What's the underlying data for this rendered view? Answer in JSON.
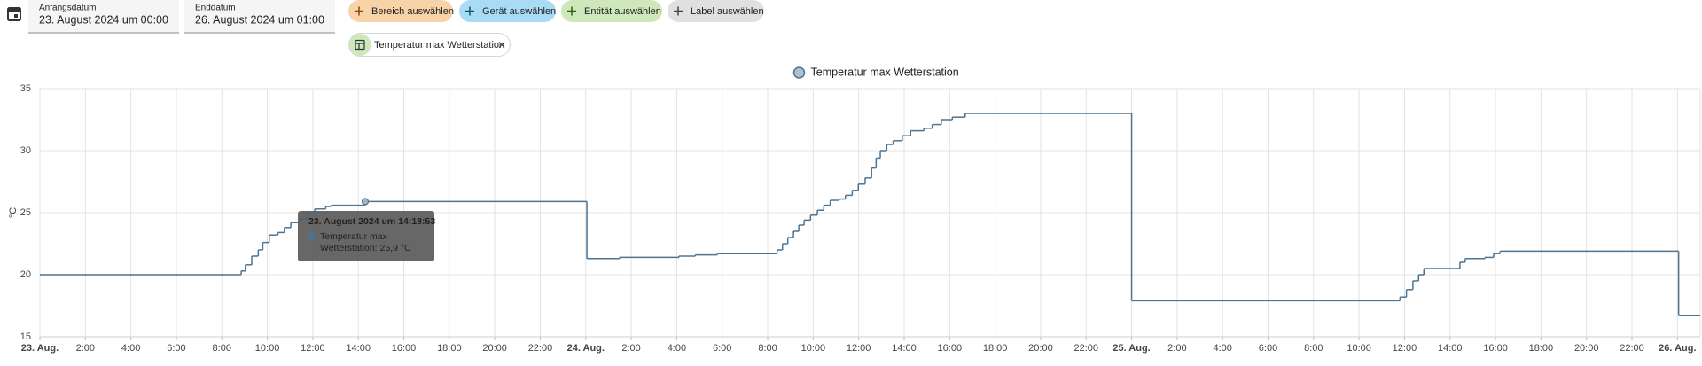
{
  "controls": {
    "start_label": "Anfangsdatum",
    "start_value": "23. August 2024 um 00:00",
    "end_label": "Enddatum",
    "end_value": "26. August 2024 um 01:00",
    "chips": [
      "Bereich auswählen",
      "Gerät auswählen",
      "Entität auswählen",
      "Label auswählen"
    ],
    "selected": "Temperatur max Wetterstation"
  },
  "chart_data": {
    "type": "line",
    "step": true,
    "ylabel": "°C",
    "grid": true,
    "xlim": [
      "2024-08-23T00:00",
      "2024-08-26T01:00"
    ],
    "ylim": [
      15,
      35
    ],
    "yticks": [
      15,
      20,
      25,
      30,
      35
    ],
    "xticks": [
      {
        "value": "2024-08-23T00:00",
        "label": "23. Aug."
      },
      {
        "value": "2024-08-23T02:00",
        "label": "2:00"
      },
      {
        "value": "2024-08-23T04:00",
        "label": "4:00"
      },
      {
        "value": "2024-08-23T06:00",
        "label": "6:00"
      },
      {
        "value": "2024-08-23T08:00",
        "label": "8:00"
      },
      {
        "value": "2024-08-23T10:00",
        "label": "10:00"
      },
      {
        "value": "2024-08-23T12:00",
        "label": "12:00"
      },
      {
        "value": "2024-08-23T14:00",
        "label": "14:00"
      },
      {
        "value": "2024-08-23T16:00",
        "label": "16:00"
      },
      {
        "value": "2024-08-23T18:00",
        "label": "18:00"
      },
      {
        "value": "2024-08-23T20:00",
        "label": "20:00"
      },
      {
        "value": "2024-08-23T22:00",
        "label": "22:00"
      },
      {
        "value": "2024-08-24T00:00",
        "label": "24. Aug."
      },
      {
        "value": "2024-08-24T02:00",
        "label": "2:00"
      },
      {
        "value": "2024-08-24T04:00",
        "label": "4:00"
      },
      {
        "value": "2024-08-24T06:00",
        "label": "6:00"
      },
      {
        "value": "2024-08-24T08:00",
        "label": "8:00"
      },
      {
        "value": "2024-08-24T10:00",
        "label": "10:00"
      },
      {
        "value": "2024-08-24T12:00",
        "label": "12:00"
      },
      {
        "value": "2024-08-24T14:00",
        "label": "14:00"
      },
      {
        "value": "2024-08-24T16:00",
        "label": "16:00"
      },
      {
        "value": "2024-08-24T18:00",
        "label": "18:00"
      },
      {
        "value": "2024-08-24T20:00",
        "label": "20:00"
      },
      {
        "value": "2024-08-24T22:00",
        "label": "22:00"
      },
      {
        "value": "2024-08-25T00:00",
        "label": "25. Aug."
      },
      {
        "value": "2024-08-25T02:00",
        "label": "2:00"
      },
      {
        "value": "2024-08-25T04:00",
        "label": "4:00"
      },
      {
        "value": "2024-08-25T06:00",
        "label": "6:00"
      },
      {
        "value": "2024-08-25T08:00",
        "label": "8:00"
      },
      {
        "value": "2024-08-25T10:00",
        "label": "10:00"
      },
      {
        "value": "2024-08-25T12:00",
        "label": "12:00"
      },
      {
        "value": "2024-08-25T14:00",
        "label": "14:00"
      },
      {
        "value": "2024-08-25T16:00",
        "label": "16:00"
      },
      {
        "value": "2024-08-25T18:00",
        "label": "18:00"
      },
      {
        "value": "2024-08-25T20:00",
        "label": "20:00"
      },
      {
        "value": "2024-08-25T22:00",
        "label": "22:00"
      },
      {
        "value": "2024-08-26T00:00",
        "label": "26. Aug."
      }
    ],
    "x": [
      "2024-08-23T00:00",
      "2024-08-23T08:51",
      "2024-08-23T09:02",
      "2024-08-23T09:19",
      "2024-08-23T09:36",
      "2024-08-23T09:48",
      "2024-08-23T10:05",
      "2024-08-23T10:28",
      "2024-08-23T10:45",
      "2024-08-23T11:02",
      "2024-08-23T11:25",
      "2024-08-23T11:45",
      "2024-08-23T12:05",
      "2024-08-23T12:34",
      "2024-08-23T12:48",
      "2024-08-23T14:18",
      "2024-08-24T00:03",
      "2024-08-24T01:29",
      "2024-08-24T04:06",
      "2024-08-24T04:49",
      "2024-08-24T05:47",
      "2024-08-24T08:25",
      "2024-08-24T08:39",
      "2024-08-24T08:53",
      "2024-08-24T09:08",
      "2024-08-24T09:22",
      "2024-08-24T09:36",
      "2024-08-24T09:53",
      "2024-08-24T10:11",
      "2024-08-24T10:28",
      "2024-08-24T10:45",
      "2024-08-24T11:08",
      "2024-08-24T11:25",
      "2024-08-24T11:43",
      "2024-08-24T11:59",
      "2024-08-24T12:17",
      "2024-08-24T12:34",
      "2024-08-24T12:46",
      "2024-08-24T12:57",
      "2024-08-24T13:14",
      "2024-08-24T13:31",
      "2024-08-24T13:55",
      "2024-08-24T14:17",
      "2024-08-24T14:52",
      "2024-08-24T15:14",
      "2024-08-24T15:38",
      "2024-08-24T16:07",
      "2024-08-24T16:41",
      "2024-08-25T00:00",
      "2024-08-25T11:48",
      "2024-08-25T12:05",
      "2024-08-25T12:22",
      "2024-08-25T12:37",
      "2024-08-25T12:51",
      "2024-08-25T14:26",
      "2024-08-25T14:40",
      "2024-08-25T15:32",
      "2024-08-25T15:55",
      "2024-08-25T16:12",
      "2024-08-26T00:03"
    ],
    "series": [
      {
        "name": "Temperatur max Wetterstation",
        "color": "#4e7391",
        "values": [
          20.0,
          20.3,
          20.8,
          21.5,
          22.0,
          22.6,
          23.2,
          23.4,
          23.8,
          24.2,
          24.5,
          25.0,
          25.3,
          25.5,
          25.6,
          25.9,
          21.3,
          21.4,
          21.5,
          21.6,
          21.7,
          22.0,
          22.5,
          23.0,
          23.5,
          24.0,
          24.4,
          24.8,
          25.2,
          25.6,
          26.0,
          26.1,
          26.4,
          26.8,
          27.3,
          27.8,
          28.6,
          29.4,
          30.0,
          30.5,
          30.8,
          31.2,
          31.6,
          31.8,
          32.1,
          32.5,
          32.7,
          33.0,
          17.9,
          18.2,
          18.8,
          19.5,
          20.0,
          20.5,
          21.0,
          21.3,
          21.4,
          21.7,
          21.9,
          16.7
        ]
      }
    ],
    "tooltip": {
      "title": "23. August 2024 um 14:18:53",
      "lines": [
        "Temperatur max",
        "Wetterstation: 25,9 °C"
      ]
    }
  }
}
